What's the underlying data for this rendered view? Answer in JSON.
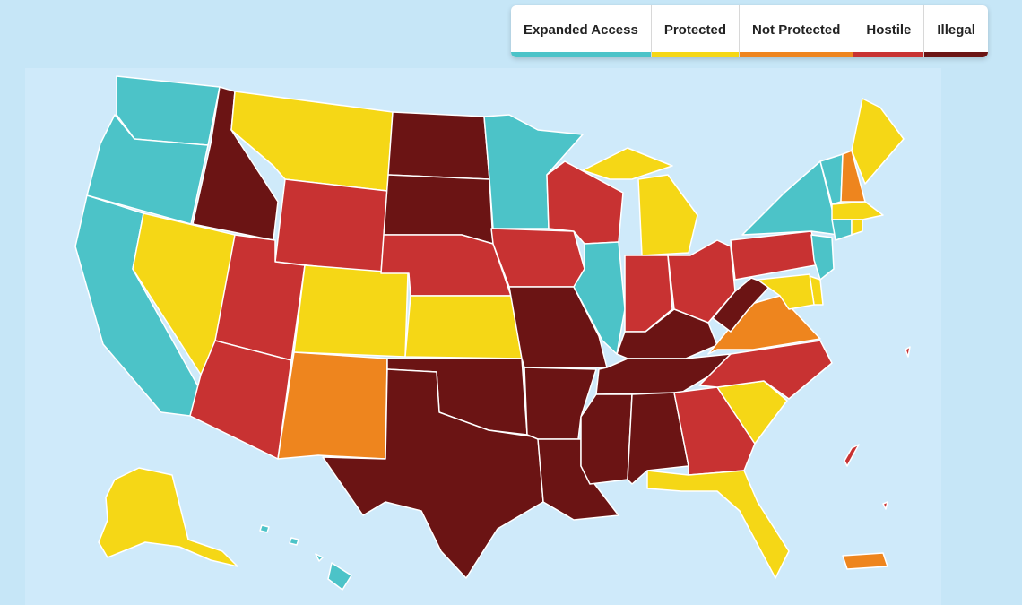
{
  "colors": {
    "expanded": "#4cc3c8",
    "protected": "#f5d716",
    "not_protected": "#ee851e",
    "hostile": "#c83232",
    "illegal": "#6b1414",
    "background": "#c6e6f7"
  },
  "legend": {
    "items": [
      {
        "key": "expanded",
        "label": "Expanded Access"
      },
      {
        "key": "protected",
        "label": "Protected"
      },
      {
        "key": "not_protected",
        "label": "Not Protected"
      },
      {
        "key": "hostile",
        "label": "Hostile"
      },
      {
        "key": "illegal",
        "label": "Illegal"
      }
    ]
  },
  "states": {
    "WA": "expanded",
    "OR": "expanded",
    "CA": "expanded",
    "ID": "illegal",
    "NV": "protected",
    "MT": "protected",
    "WY": "hostile",
    "UT": "hostile",
    "AZ": "hostile",
    "CO": "protected",
    "NM": "not_protected",
    "ND": "illegal",
    "SD": "illegal",
    "NE": "hostile",
    "KS": "protected",
    "OK": "illegal",
    "TX": "illegal",
    "MN": "expanded",
    "IA": "hostile",
    "MO": "illegal",
    "AR": "illegal",
    "LA": "illegal",
    "WI": "hostile",
    "IL": "expanded",
    "MI": "protected",
    "IN": "hostile",
    "OH": "hostile",
    "KY": "illegal",
    "TN": "illegal",
    "MS": "illegal",
    "AL": "illegal",
    "GA": "hostile",
    "FL": "protected",
    "SC": "protected",
    "NC": "hostile",
    "VA": "not_protected",
    "WV": "illegal",
    "PA": "hostile",
    "NY": "expanded",
    "VT": "expanded",
    "NH": "not_protected",
    "ME": "protected",
    "MA": "protected",
    "CT": "expanded",
    "RI": "protected",
    "NJ": "expanded",
    "DE": "protected",
    "MD": "protected",
    "AK": "protected",
    "HI": "expanded",
    "PR": "not_protected",
    "USVI": "hostile"
  }
}
